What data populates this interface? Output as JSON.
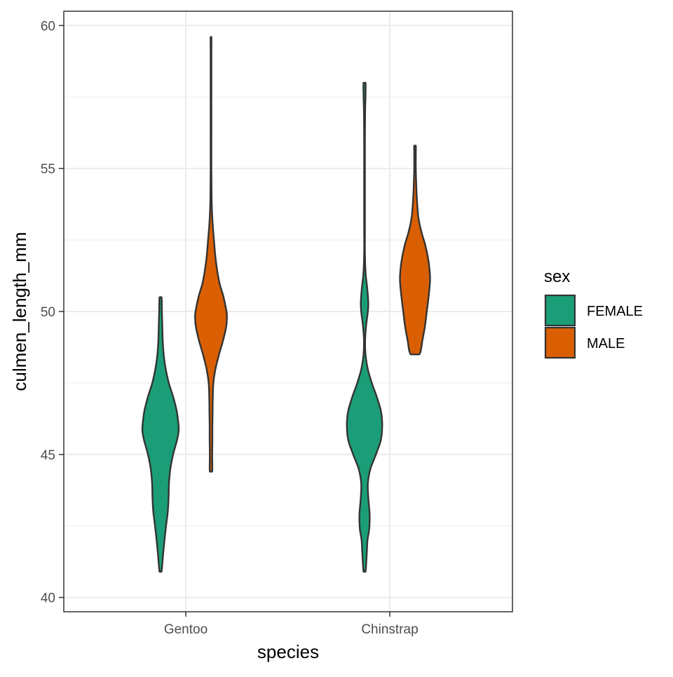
{
  "chart_data": {
    "type": "violin",
    "xlabel": "species",
    "ylabel": "culmen_length_mm",
    "categories": [
      "Gentoo",
      "Chinstrap"
    ],
    "y_ticks": [
      "40",
      "45",
      "50",
      "55",
      "60"
    ],
    "ylim": [
      39.5,
      60.5
    ],
    "grid": true,
    "legend": {
      "title": "sex",
      "placement": "right",
      "entries": [
        {
          "label": "FEMALE",
          "color": "#1b9e77"
        },
        {
          "label": "MALE",
          "color": "#d95f02"
        }
      ]
    },
    "series": [
      {
        "name": "FEMALE",
        "color": "#1b9e77",
        "violins": [
          {
            "category": "Gentoo",
            "min": 40.9,
            "max": 50.5,
            "profile": [
              [
                40.9,
                0.05
              ],
              [
                41.5,
                0.13
              ],
              [
                42.0,
                0.2
              ],
              [
                42.5,
                0.28
              ],
              [
                43.0,
                0.37
              ],
              [
                43.5,
                0.41
              ],
              [
                44.0,
                0.43
              ],
              [
                44.5,
                0.5
              ],
              [
                45.0,
                0.64
              ],
              [
                45.5,
                0.84
              ],
              [
                45.8,
                0.92
              ],
              [
                46.0,
                0.92
              ],
              [
                46.5,
                0.83
              ],
              [
                47.0,
                0.65
              ],
              [
                47.5,
                0.42
              ],
              [
                48.0,
                0.26
              ],
              [
                48.5,
                0.16
              ],
              [
                49.0,
                0.11
              ],
              [
                49.5,
                0.09
              ],
              [
                50.0,
                0.07
              ],
              [
                50.5,
                0.05
              ]
            ]
          },
          {
            "category": "Chinstrap",
            "min": 40.9,
            "max": 58.0,
            "profile": [
              [
                40.9,
                0.05
              ],
              [
                41.5,
                0.11
              ],
              [
                42.0,
                0.15
              ],
              [
                42.4,
                0.24
              ],
              [
                42.9,
                0.26
              ],
              [
                43.5,
                0.19
              ],
              [
                44.0,
                0.17
              ],
              [
                44.5,
                0.3
              ],
              [
                45.0,
                0.58
              ],
              [
                45.5,
                0.83
              ],
              [
                46.0,
                0.9
              ],
              [
                46.5,
                0.84
              ],
              [
                47.0,
                0.63
              ],
              [
                47.5,
                0.37
              ],
              [
                48.0,
                0.16
              ],
              [
                48.5,
                0.05
              ],
              [
                49.0,
                0.03
              ],
              [
                49.5,
                0.08
              ],
              [
                50.0,
                0.17
              ],
              [
                50.3,
                0.19
              ],
              [
                50.8,
                0.14
              ],
              [
                51.3,
                0.06
              ],
              [
                52.0,
                0.02
              ],
              [
                53.0,
                0.02
              ],
              [
                54.0,
                0.02
              ],
              [
                55.0,
                0.02
              ],
              [
                56.0,
                0.02
              ],
              [
                57.0,
                0.03
              ],
              [
                57.5,
                0.05
              ],
              [
                58.0,
                0.05
              ]
            ]
          }
        ]
      },
      {
        "name": "MALE",
        "color": "#d95f02",
        "violins": [
          {
            "category": "Gentoo",
            "min": 44.4,
            "max": 59.6,
            "profile": [
              [
                44.4,
                0.06
              ],
              [
                45.0,
                0.06
              ],
              [
                45.5,
                0.07
              ],
              [
                46.0,
                0.07
              ],
              [
                46.5,
                0.08
              ],
              [
                47.0,
                0.09
              ],
              [
                47.5,
                0.12
              ],
              [
                48.0,
                0.23
              ],
              [
                48.5,
                0.41
              ],
              [
                49.0,
                0.62
              ],
              [
                49.5,
                0.78
              ],
              [
                49.8,
                0.81
              ],
              [
                50.0,
                0.79
              ],
              [
                50.5,
                0.64
              ],
              [
                51.0,
                0.43
              ],
              [
                51.5,
                0.3
              ],
              [
                52.0,
                0.21
              ],
              [
                52.5,
                0.15
              ],
              [
                53.0,
                0.09
              ],
              [
                53.5,
                0.05
              ],
              [
                54.0,
                0.03
              ],
              [
                55.0,
                0.02
              ],
              [
                56.0,
                0.02
              ],
              [
                57.0,
                0.02
              ],
              [
                58.0,
                0.02
              ],
              [
                59.0,
                0.02
              ],
              [
                59.6,
                0.02
              ]
            ]
          },
          {
            "category": "Chinstrap",
            "min": 48.5,
            "max": 55.8,
            "profile": [
              [
                48.5,
                0.22
              ],
              [
                49.0,
                0.38
              ],
              [
                49.5,
                0.51
              ],
              [
                50.0,
                0.6
              ],
              [
                50.5,
                0.69
              ],
              [
                51.0,
                0.76
              ],
              [
                51.3,
                0.76
              ],
              [
                51.8,
                0.68
              ],
              [
                52.3,
                0.53
              ],
              [
                52.8,
                0.32
              ],
              [
                53.3,
                0.17
              ],
              [
                54.0,
                0.09
              ],
              [
                54.5,
                0.06
              ],
              [
                55.0,
                0.04
              ],
              [
                55.5,
                0.04
              ],
              [
                55.8,
                0.04
              ]
            ]
          }
        ]
      }
    ]
  }
}
